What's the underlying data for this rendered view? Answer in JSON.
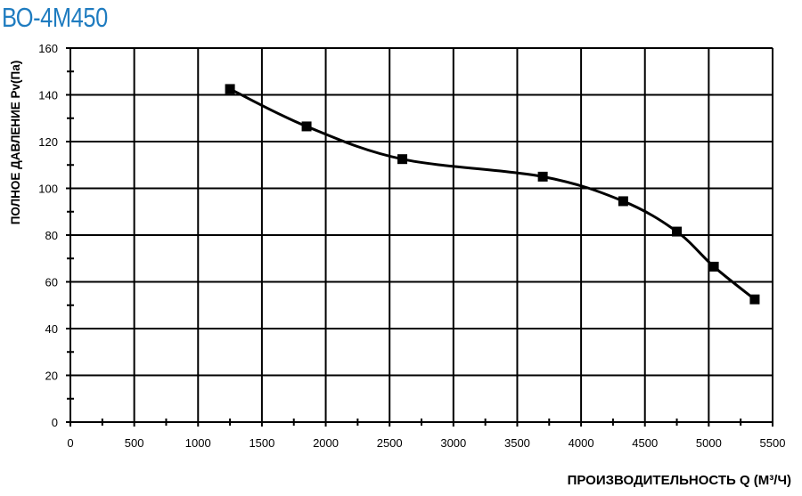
{
  "title": "ВО-4М450",
  "colors": {
    "title": "#1f7cc0",
    "line": "#000000",
    "grid": "#000000"
  },
  "chart_data": {
    "type": "line",
    "title": "ВО-4М450",
    "xlabel": "ПРОИЗВОДИТЕЛЬНОСТЬ  Q  (М³/Ч)",
    "ylabel": "ПОЛНОЕ ДАВЛЕНИЕ   Pv(Па)",
    "xlim": [
      0,
      5500
    ],
    "ylim": [
      0,
      160
    ],
    "xticks": [
      0,
      500,
      1000,
      1500,
      2000,
      2500,
      3000,
      3500,
      4000,
      4500,
      5000,
      5500
    ],
    "yticks": [
      0,
      20,
      40,
      60,
      80,
      100,
      120,
      140,
      160
    ],
    "grid": true,
    "legend": "none",
    "series": [
      {
        "x": [
          1250,
          1850,
          2600,
          3700,
          4330,
          4750,
          5040,
          5360
        ],
        "y": [
          142.5,
          126.5,
          112.5,
          105,
          94.5,
          81.5,
          66.5,
          52.5
        ],
        "marker": "square",
        "smooth": true
      }
    ]
  }
}
